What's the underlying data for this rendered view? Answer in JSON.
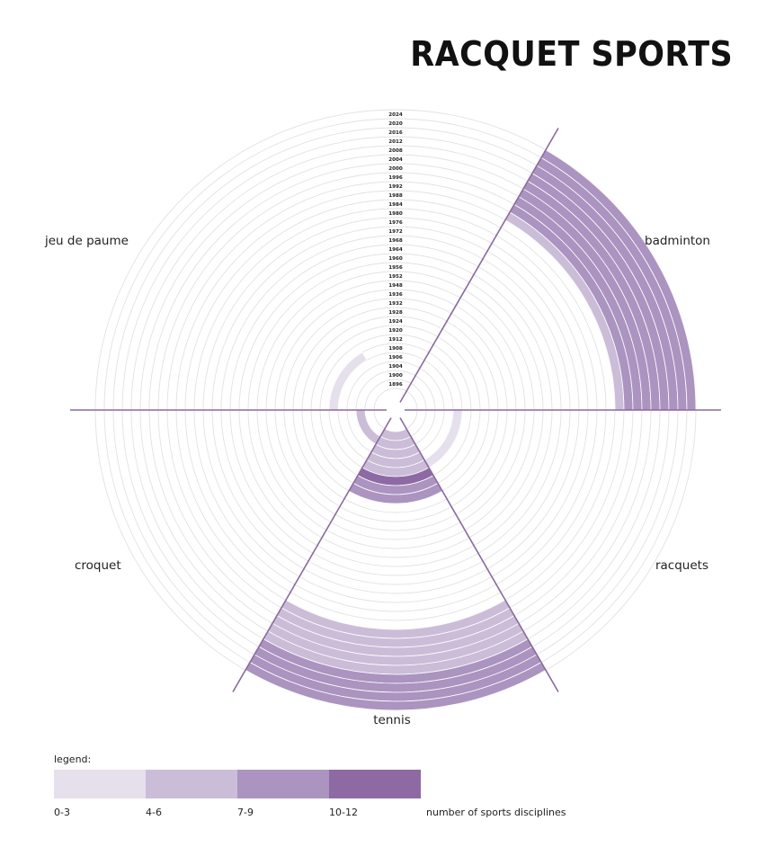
{
  "title": "RACQUET SPORTS",
  "chart_data": {
    "type": "radial-heatmap",
    "years": [
      1896,
      1900,
      1904,
      1906,
      1908,
      1912,
      1920,
      1924,
      1928,
      1932,
      1936,
      1948,
      1952,
      1956,
      1960,
      1964,
      1968,
      1972,
      1976,
      1980,
      1984,
      1988,
      1992,
      1996,
      2000,
      2004,
      2008,
      2012,
      2016,
      2020,
      2024
    ],
    "sports": [
      {
        "name": "badminton",
        "levels": [
          0,
          0,
          0,
          0,
          0,
          0,
          0,
          0,
          0,
          0,
          0,
          0,
          0,
          0,
          0,
          0,
          0,
          0,
          0,
          0,
          0,
          0,
          2,
          3,
          3,
          3,
          3,
          3,
          3,
          3,
          3
        ]
      },
      {
        "name": "racquets",
        "levels": [
          0,
          0,
          0,
          0,
          1,
          0,
          0,
          0,
          0,
          0,
          0,
          0,
          0,
          0,
          0,
          0,
          0,
          0,
          0,
          0,
          0,
          0,
          0,
          0,
          0,
          0,
          0,
          0,
          0,
          0,
          0
        ]
      },
      {
        "name": "tennis",
        "levels": [
          2,
          2,
          2,
          2,
          2,
          4,
          3,
          3,
          0,
          0,
          0,
          0,
          0,
          0,
          0,
          0,
          0,
          0,
          0,
          0,
          0,
          0,
          2,
          2,
          2,
          2,
          2,
          3,
          3,
          3,
          3
        ]
      },
      {
        "name": "croquet",
        "levels": [
          0,
          2,
          0,
          0,
          0,
          0,
          0,
          0,
          0,
          0,
          0,
          0,
          0,
          0,
          0,
          0,
          0,
          0,
          0,
          0,
          0,
          0,
          0,
          0,
          0,
          0,
          0,
          0,
          0,
          0,
          0
        ]
      },
      {
        "name": "jeu de paume",
        "levels": [
          0,
          0,
          0,
          0,
          1,
          0,
          0,
          0,
          0,
          0,
          0,
          0,
          0,
          0,
          0,
          0,
          0,
          0,
          0,
          0,
          0,
          0,
          0,
          0,
          0,
          0,
          0,
          0,
          0,
          0,
          0
        ]
      }
    ],
    "legend": {
      "title": "legend:",
      "bins": [
        "0-3",
        "4-6",
        "7-9",
        "10-12"
      ],
      "description": "number of sports disciplines"
    },
    "colors": {
      "level1": "#e6dfec",
      "level2": "#cbbdd8",
      "level3": "#ab94c0",
      "level4": "#8e6aa4",
      "ring": "#e2e2e2",
      "divider": "#8a6a9e"
    }
  }
}
